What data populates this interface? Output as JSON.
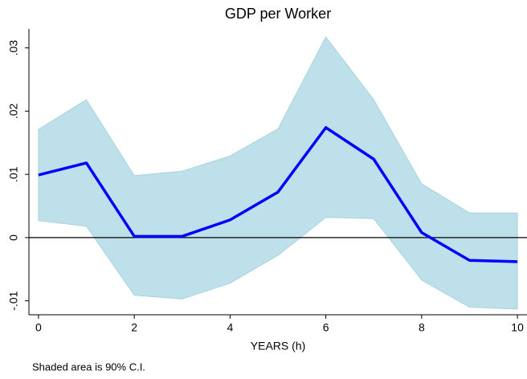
{
  "chart_data": {
    "type": "line-band",
    "title": "GDP per Worker",
    "x_label": "YEARS (h)",
    "note": "Shaded area is 90% C.I.",
    "x": [
      0,
      1,
      2,
      3,
      4,
      5,
      6,
      7,
      8,
      9,
      10
    ],
    "values": [
      0.0099,
      0.0118,
      0.0002,
      0.0002,
      0.0028,
      0.0072,
      0.0174,
      0.0124,
      0.0008,
      -0.0036,
      -0.0038
    ],
    "upper": [
      0.0171,
      0.0218,
      0.0098,
      0.0105,
      0.0129,
      0.0172,
      0.0317,
      0.0218,
      0.0085,
      0.0039,
      0.0039
    ],
    "lower": [
      0.0027,
      0.0018,
      -0.0091,
      -0.0097,
      -0.0072,
      -0.0028,
      0.0032,
      0.003,
      -0.0067,
      -0.011,
      -0.0113
    ],
    "color": "#0000ff",
    "band_color": "#bde0ea",
    "xlim": [
      -0.2,
      10.2
    ],
    "xticks": [
      0,
      2,
      4,
      6,
      8,
      10
    ],
    "ylim": [
      -0.0122,
      0.033
    ],
    "yticks": [
      {
        "value": -0.01,
        "label": "-.01"
      },
      0,
      {
        "value": 0.01,
        "label": ".01"
      },
      {
        "value": 0.02,
        "label": ".02"
      },
      {
        "value": 0.03,
        "label": ".03"
      }
    ],
    "reference_line": 0
  }
}
